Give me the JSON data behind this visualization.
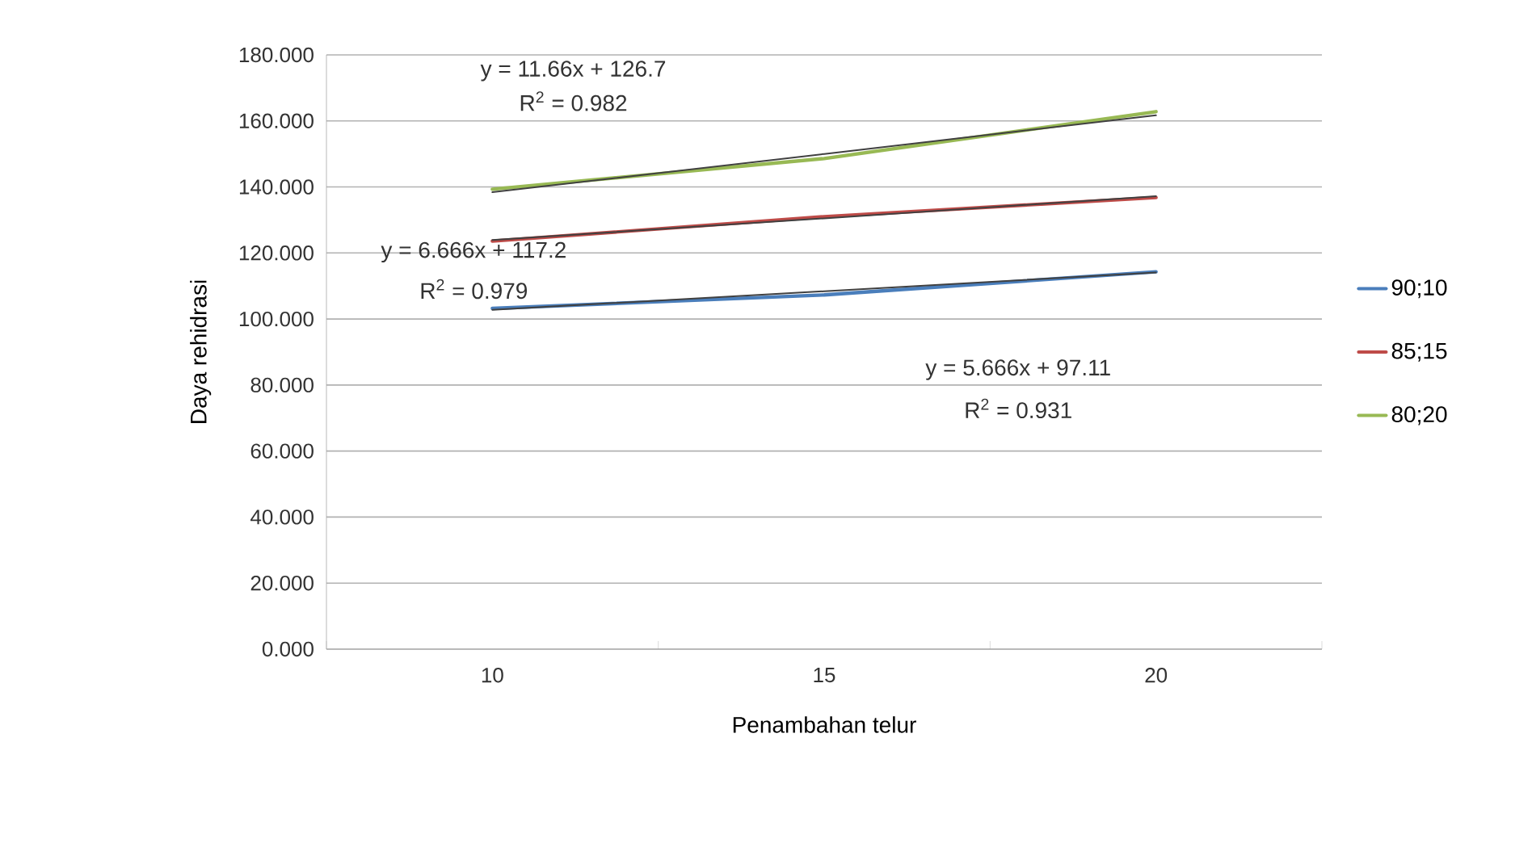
{
  "chart_data": {
    "type": "line",
    "xlabel": "Penambahan telur",
    "ylabel": "Daya rehidrasi",
    "categories": [
      "10",
      "15",
      "20"
    ],
    "series": [
      {
        "name": "90;10",
        "color": "#4a7ebb",
        "values": [
          103.2,
          107.3,
          114.3
        ]
      },
      {
        "name": "85;15",
        "color": "#be4b48",
        "values": [
          123.6,
          131,
          136.8
        ]
      },
      {
        "name": "80;20",
        "color": "#98b954",
        "values": [
          139.3,
          148.6,
          162.8
        ]
      },
      {
        "type": "line",
        "color": "#404040",
        "values": [
          102.8,
          108.4,
          114.1
        ]
      },
      {
        "type": "line",
        "color": "#404040",
        "values": [
          123.9,
          130.5,
          137.2
        ]
      },
      {
        "type": "line",
        "color": "#404040",
        "values": [
          138.4,
          150.0,
          161.7
        ]
      }
    ],
    "ylim": [
      0,
      180
    ],
    "yticks": [
      {
        "value": 0,
        "label": "0.000"
      },
      {
        "value": 20,
        "label": "20.000"
      },
      {
        "value": 40,
        "label": "40.000"
      },
      {
        "value": 60,
        "label": "60.000"
      },
      {
        "value": 80,
        "label": "80.000"
      },
      {
        "value": 100,
        "label": "100.000"
      },
      {
        "value": 120,
        "label": "120.000"
      },
      {
        "value": 140,
        "label": "140.000"
      },
      {
        "value": 160,
        "label": "160.000"
      },
      {
        "value": 180,
        "label": "180.000"
      }
    ],
    "grid": "y",
    "legend": "right",
    "marker": "none",
    "line_style": "solid",
    "annotations": [
      "y = 11.66x + 126.7",
      "R$^{2}$ = 0.982",
      "y = 6.666x + 117.2",
      "R$^{2}$ = 0.979",
      "y = 5.666x + 97.11",
      "R$^{2}$ = 0.931"
    ]
  }
}
